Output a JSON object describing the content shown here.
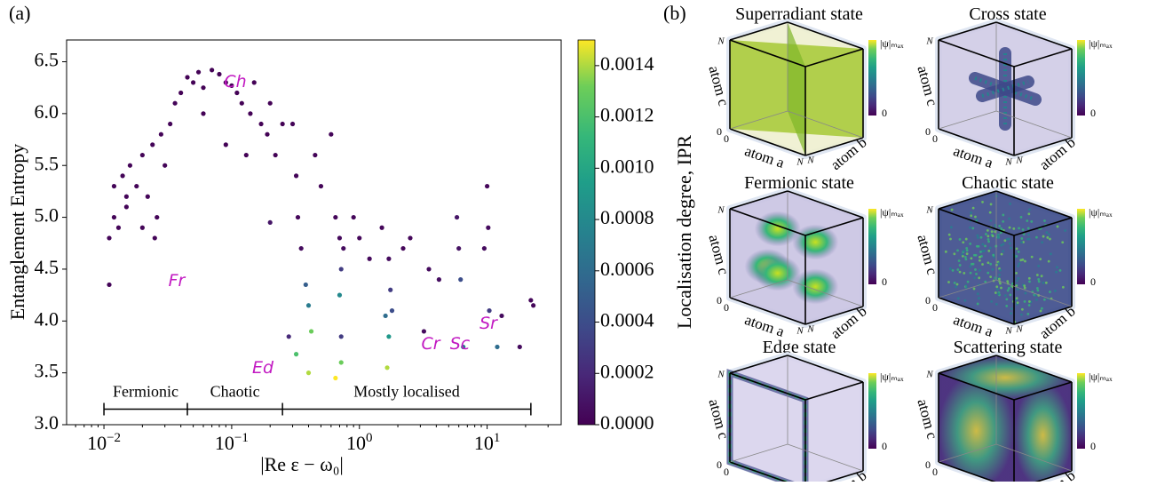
{
  "chart_data": {
    "type": "scatter",
    "panel_label": "(a)",
    "xlabel": "|Re ε − ω₀|",
    "ylabel": "Entanglement Entropy",
    "xscale": "log",
    "xlim": [
      0.0051,
      38
    ],
    "xticks": [
      {
        "value": 0.01,
        "label": "10",
        "exp": "−2"
      },
      {
        "value": 0.1,
        "label": "10",
        "exp": "−1"
      },
      {
        "value": 1,
        "label": "10",
        "exp": "0"
      },
      {
        "value": 10,
        "label": "10",
        "exp": "1"
      }
    ],
    "ylim": [
      3.0,
      6.71
    ],
    "yticks": [
      {
        "value": 3,
        "label": "3.0"
      },
      3.5,
      {
        "value": 4,
        "label": "4.0"
      },
      4.5,
      {
        "value": 5,
        "label": "5.0"
      },
      5.5,
      {
        "value": 6,
        "label": "6.0"
      },
      6.5
    ],
    "colormap": "viridis",
    "colorbar": {
      "label": "Localisation degree, IPR",
      "lim": [
        0,
        0.0015
      ],
      "ticks": [
        {
          "value": 0,
          "label": "0.0000"
        },
        {
          "value": 0.0002,
          "label": "0.0002"
        },
        {
          "value": 0.0004,
          "label": "0.0004"
        },
        {
          "value": 0.0006,
          "label": "0.0006"
        },
        {
          "value": 0.0008,
          "label": "0.0008"
        },
        {
          "value": 0.001,
          "label": "0.0010"
        },
        {
          "value": 0.0012,
          "label": "0.0012"
        },
        {
          "value": 0.0014,
          "label": "0.0014"
        }
      ]
    },
    "annotations": [
      "Fr",
      "Ch",
      "Ed",
      "Cr",
      "Sc",
      "Sr"
    ],
    "regions": {
      "labels": [
        "Fermionic",
        "Chaotic",
        "Mostly localised"
      ],
      "boundaries": [
        0.01,
        0.045,
        0.25,
        22
      ],
      "level": 3.15
    },
    "x": [
      0.011,
      0.011,
      0.012,
      0.012,
      0.013,
      0.014,
      0.015,
      0.016,
      0.018,
      0.02,
      0.022,
      0.024,
      0.026,
      0.028,
      0.03,
      0.033,
      0.036,
      0.025,
      0.02,
      0.015,
      0.04,
      0.045,
      0.05,
      0.055,
      0.06,
      0.07,
      0.08,
      0.09,
      0.1,
      0.11,
      0.12,
      0.14,
      0.15,
      0.17,
      0.19,
      0.2,
      0.22,
      0.25,
      0.06,
      0.09,
      0.13,
      0.3,
      0.32,
      0.33,
      0.35,
      0.2,
      0.45,
      0.5,
      0.6,
      0.65,
      0.7,
      0.72,
      0.75,
      0.9,
      1.0,
      1.2,
      1.5,
      1.7,
      1.75,
      1.8,
      2.2,
      2.5,
      3.5,
      4.2,
      5.8,
      6.0,
      6.2,
      9.5,
      10,
      10.2,
      10.4,
      13,
      22,
      23,
      0.38,
      0.4,
      0.42,
      0.4,
      0.7,
      0.72,
      0.72,
      0.32,
      1.65,
      1.7,
      1.6,
      0.28,
      3.2,
      6.5,
      12,
      18,
      0.65
    ],
    "y": [
      4.35,
      4.8,
      5.0,
      5.3,
      4.9,
      5.4,
      5.1,
      5.5,
      5.3,
      5.6,
      5.2,
      5.7,
      5.0,
      5.8,
      5.5,
      5.9,
      6.1,
      4.8,
      4.9,
      5.2,
      6.2,
      6.35,
      6.3,
      6.4,
      6.25,
      6.42,
      6.38,
      6.3,
      6.27,
      6.2,
      6.1,
      6.0,
      6.3,
      5.9,
      5.8,
      6.1,
      5.6,
      5.9,
      6.0,
      5.7,
      5.6,
      5.9,
      5.4,
      5.0,
      4.7,
      4.95,
      5.6,
      5.3,
      5.8,
      5.0,
      4.8,
      4.5,
      4.7,
      5.0,
      4.8,
      4.6,
      4.9,
      4.6,
      4.3,
      4.1,
      4.7,
      4.8,
      4.5,
      4.4,
      5.0,
      4.7,
      4.4,
      4.7,
      5.3,
      4.9,
      4.1,
      4.05,
      4.2,
      4.15,
      4.35,
      4.15,
      3.9,
      3.5,
      4.25,
      3.6,
      3.85,
      3.68,
      3.55,
      3.85,
      4.05,
      3.85,
      3.9,
      3.75,
      3.75,
      3.75,
      3.45
    ],
    "c": [
      2e-05,
      2e-05,
      2e-05,
      2e-05,
      2e-05,
      2e-05,
      2e-05,
      2e-05,
      2e-05,
      2e-05,
      2e-05,
      2e-05,
      2e-05,
      2e-05,
      2e-05,
      2e-05,
      2e-05,
      2e-05,
      2e-05,
      2e-05,
      1e-05,
      1e-05,
      1e-05,
      1e-05,
      1e-05,
      1e-05,
      1e-05,
      1e-05,
      1e-05,
      1e-05,
      1e-05,
      1e-05,
      1e-05,
      1e-05,
      1e-05,
      1e-05,
      1e-05,
      1e-05,
      1e-05,
      1e-05,
      1e-05,
      2e-05,
      2e-05,
      3e-05,
      5e-05,
      0.0001,
      2e-05,
      2e-05,
      2e-05,
      3e-05,
      4e-05,
      0.0003,
      5e-05,
      3e-05,
      3e-05,
      4e-05,
      3e-05,
      5e-05,
      0.0003,
      0.0004,
      3e-05,
      3e-05,
      5e-05,
      6e-05,
      0.0001,
      8e-05,
      0.0004,
      5e-05,
      3e-05,
      5e-05,
      0.0003,
      5e-05,
      3e-05,
      3e-05,
      0.0005,
      0.0007,
      0.0013,
      0.0014,
      0.0008,
      0.0013,
      0.0003,
      0.0012,
      0.0014,
      0.0009,
      0.0006,
      0.0002,
      5e-05,
      0.0007,
      0.0006,
      5e-05,
      0.0015
    ]
  },
  "panel_b": {
    "label": "(b)",
    "states": [
      "Superradiant state",
      "Cross state",
      "Fermionic state",
      "Chaotic state",
      "Edge state",
      "Scattering state"
    ],
    "axis_labels": {
      "a": "atom a",
      "b": "atom b",
      "c": "atom c"
    },
    "axis_max": "N",
    "axis_min": "0",
    "colorbar_max": "|ψ|ₘₐₓ",
    "colorbar_min": "0"
  }
}
